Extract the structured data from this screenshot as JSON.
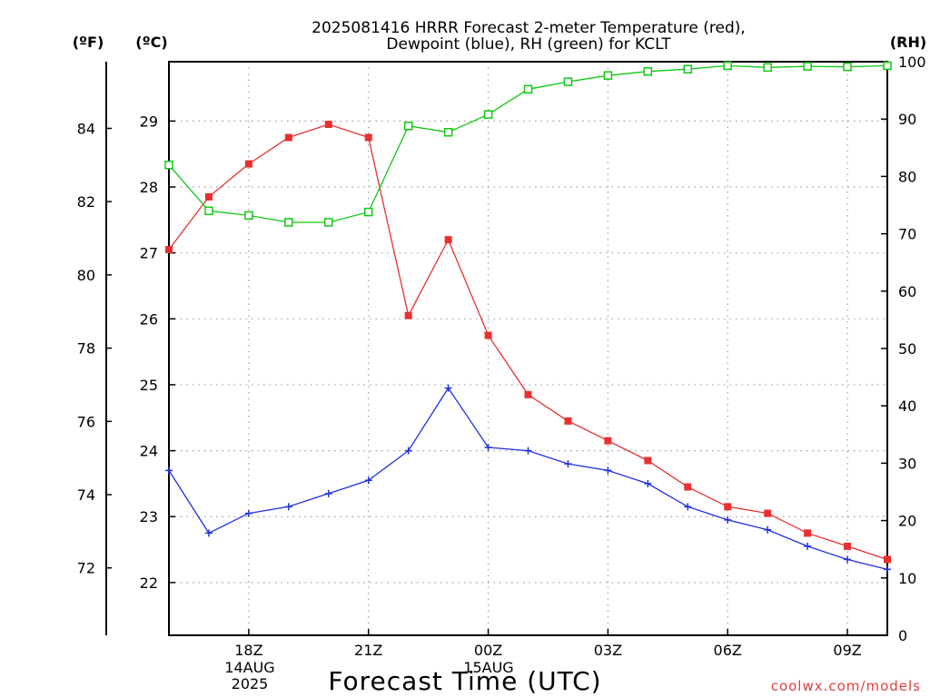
{
  "chart_data": {
    "type": "line",
    "title_line1": "2025081416 HRRR Forecast 2-meter Temperature (red),",
    "title_line2": "Dewpoint (blue), RH (green) for KCLT",
    "xlabel": "Forecast Time (UTC)",
    "credit": "coolwx.com/models",
    "units": {
      "fahrenheit": "(ºF)",
      "celsius": "(ºC)",
      "rh": "(RH)"
    },
    "date_labels": {
      "line1": "14AUG",
      "line2": "2025",
      "next_day": "15AUG"
    },
    "x_hours": [
      16,
      17,
      18,
      19,
      20,
      21,
      22,
      23,
      24,
      25,
      26,
      27,
      28,
      29,
      30,
      31,
      32,
      33,
      34
    ],
    "x_ticks": [
      {
        "hour": 18,
        "label": "18Z"
      },
      {
        "hour": 21,
        "label": "21Z"
      },
      {
        "hour": 24,
        "label": "00Z"
      },
      {
        "hour": 27,
        "label": "03Z"
      },
      {
        "hour": 30,
        "label": "06Z"
      },
      {
        "hour": 33,
        "label": "09Z"
      }
    ],
    "xlim": [
      16,
      34
    ],
    "celsius_lim": [
      21.2,
      29.9
    ],
    "celsius_ticks": [
      "22",
      "23",
      "24",
      "25",
      "26",
      "27",
      "28",
      "29"
    ],
    "fahrenheit_ticks": [
      "72",
      "74",
      "76",
      "78",
      "80",
      "82",
      "84"
    ],
    "rh_lim": [
      0,
      100
    ],
    "rh_ticks": [
      "0",
      "10",
      "20",
      "30",
      "40",
      "50",
      "60",
      "70",
      "80",
      "90",
      "100"
    ],
    "grid": true,
    "colors": {
      "temperature": "#e83030",
      "dewpoint": "#2030e0",
      "rh": "#10c810",
      "axes": "#000000",
      "grid": "#a0a0a0"
    },
    "series": [
      {
        "key": "temperature",
        "axis": "celsius",
        "marker": "filled-square",
        "values": [
          27.05,
          27.85,
          28.35,
          28.75,
          28.95,
          28.75,
          26.05,
          27.2,
          25.75,
          24.85,
          24.45,
          24.15,
          23.85,
          23.45,
          23.15,
          23.05,
          22.75,
          22.55,
          22.35
        ]
      },
      {
        "key": "dewpoint",
        "axis": "celsius",
        "marker": "plus",
        "values": [
          23.7,
          22.75,
          23.05,
          23.15,
          23.35,
          23.55,
          24.0,
          24.95,
          24.05,
          24.0,
          23.8,
          23.7,
          23.5,
          23.15,
          22.95,
          22.8,
          22.55,
          22.35,
          22.2
        ]
      },
      {
        "key": "rh",
        "axis": "rh",
        "marker": "open-square",
        "values": [
          82,
          74,
          73.2,
          72,
          72,
          73.8,
          88.8,
          87.7,
          90.8,
          95.2,
          96.5,
          97.6,
          98.3,
          98.7,
          99.3,
          99.0,
          99.2,
          99.1,
          99.3
        ]
      }
    ]
  }
}
